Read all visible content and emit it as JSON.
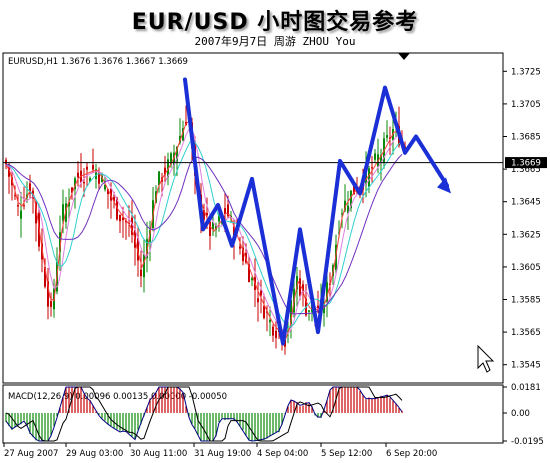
{
  "header": {
    "title": "EUR/USD 小时图交易参考",
    "subtitle": "2007年9月7日     周游 ZHOU You"
  },
  "chart_data": {
    "type": "candlestick",
    "title": "EURUSD,H1  1.3676 1.3676 1.3667 1.3669",
    "symbol": "EURUSD,H1",
    "ohlc_label": "1.3676 1.3676 1.3667 1.3669",
    "ylim": [
      1.3535,
      1.3735
    ],
    "y_ticks": [
      "1.3725",
      "1.3705",
      "1.3685",
      "1.3665",
      "1.3645",
      "1.3625",
      "1.3605",
      "1.3585",
      "1.3565",
      "1.3545"
    ],
    "current_price": 1.3669,
    "current_price_label": "1.3669",
    "x_labels": [
      "27 Aug 2007",
      "29 Aug 03:00",
      "30 Aug 11:00",
      "31 Aug 19:00",
      "4 Sep 04:00",
      "5 Sep 12:00",
      "6 Sep 20:00"
    ],
    "forecast_path": [
      [
        1.372,
        1.3628,
        1.3643,
        1.3618,
        1.3659,
        1.3558,
        1.3628,
        1.3565,
        1.367,
        1.365,
        1.3715,
        1.3675,
        1.3685,
        1.3655
      ]
    ],
    "macd": {
      "label": "MACD(12,26,9) 0.00096 0.00135 0.00000 -0.00050",
      "ylim": [
        -0.0195,
        0.0181
      ],
      "y_ticks": [
        "0.0181",
        "0.00",
        "-0.0195"
      ]
    }
  }
}
